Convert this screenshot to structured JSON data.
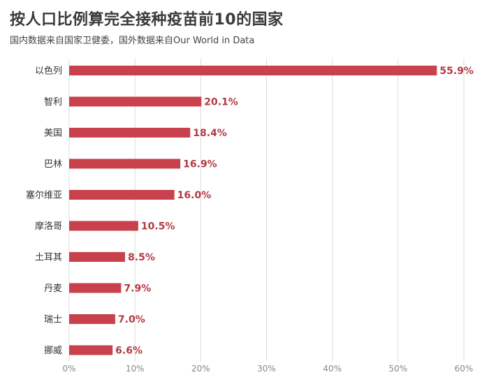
{
  "header": {
    "title": "按人口比例算完全接种疫苗前10的国家",
    "subtitle": "国内数据来自国家卫健委，国外数据来自Our World in Data"
  },
  "colors": {
    "bar": "#c8414d",
    "value_label": "#b23a44",
    "grid": "#dcdcdc"
  },
  "chart_data": {
    "type": "bar",
    "orientation": "horizontal",
    "title": "按人口比例算完全接种疫苗前10的国家",
    "subtitle": "国内数据来自国家卫健委，国外数据来自Our World in Data",
    "categories": [
      "以色列",
      "智利",
      "美国",
      "巴林",
      "塞尔维亚",
      "摩洛哥",
      "土耳其",
      "丹麦",
      "瑞士",
      "挪威"
    ],
    "values": [
      55.9,
      20.1,
      18.4,
      16.9,
      16.0,
      10.5,
      8.5,
      7.9,
      7.0,
      6.6
    ],
    "value_labels": [
      "55.9%",
      "20.1%",
      "18.4%",
      "16.9%",
      "16.0%",
      "10.5%",
      "8.5%",
      "7.9%",
      "7.0%",
      "6.6%"
    ],
    "xlim": [
      0,
      60
    ],
    "xticks": [
      0,
      10,
      20,
      30,
      40,
      50,
      60
    ],
    "xtick_labels": [
      "0%",
      "10%",
      "20%",
      "30%",
      "40%",
      "50%",
      "60%"
    ],
    "xlabel": "",
    "ylabel": "",
    "grid": "vertical",
    "legend": "none"
  }
}
